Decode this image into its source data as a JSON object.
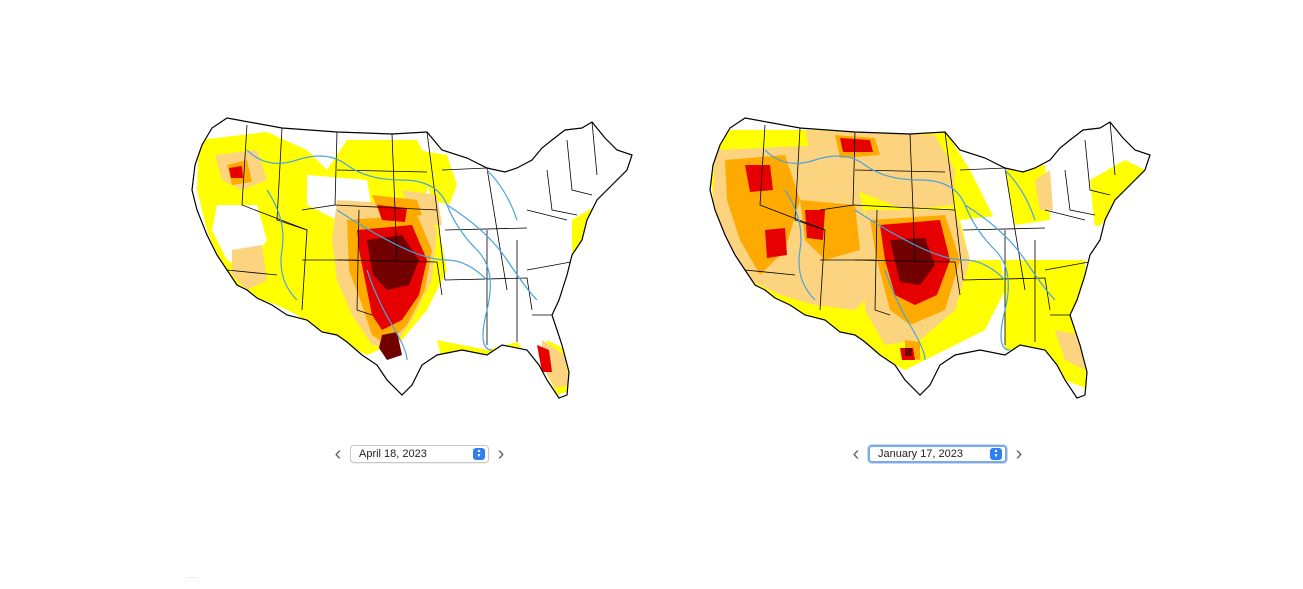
{
  "maps": [
    {
      "id": "left",
      "date": "April 18, 2023",
      "prev_icon": "chevron-left-icon",
      "next_icon": "chevron-right-icon",
      "selector_icon": "up-down-stepper-icon"
    },
    {
      "id": "right",
      "date": "January 17, 2023",
      "prev_icon": "chevron-left-icon",
      "next_icon": "chevron-right-icon",
      "selector_icon": "up-down-stepper-icon",
      "focused": true
    }
  ],
  "legend_colors": {
    "abnormally_dry": "#ffff00",
    "moderate": "#fcd37f",
    "severe": "#ffaa00",
    "extreme": "#e60000",
    "exceptional": "#730000",
    "rivers": "#4aa3df",
    "borders": "#000000"
  },
  "glyphs": {
    "chev_left": "‹",
    "chev_right": "›",
    "step_up": "▲",
    "step_down": "▼"
  }
}
